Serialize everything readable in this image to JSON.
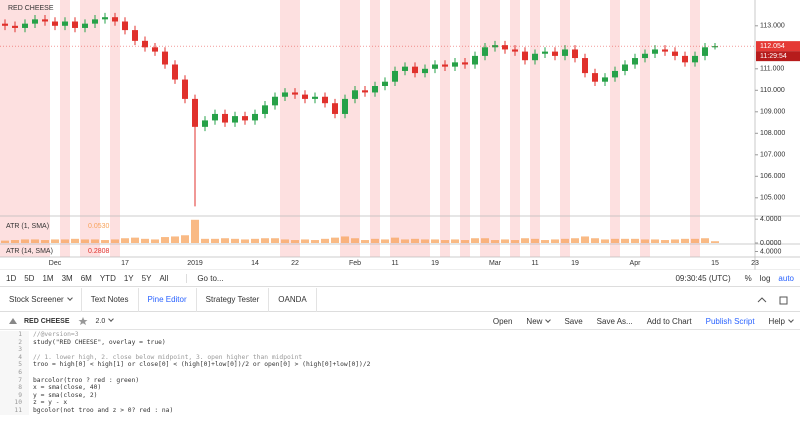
{
  "chart_data": [
    {
      "type": "candlestick",
      "title": "RED CHEESE",
      "categories": [
        null,
        null,
        null,
        null,
        null,
        "Dec",
        null,
        null,
        null,
        null,
        null,
        null,
        "17",
        null,
        null,
        null,
        null,
        null,
        null,
        "2019",
        null,
        null,
        null,
        null,
        null,
        "14",
        null,
        null,
        null,
        "22",
        null,
        null,
        null,
        null,
        null,
        "Feb",
        null,
        null,
        null,
        "11",
        null,
        null,
        null,
        "19",
        null,
        null,
        null,
        null,
        null,
        "Mar",
        null,
        null,
        null,
        "11",
        null,
        null,
        null,
        "19",
        null,
        null,
        null,
        null,
        null,
        "Apr",
        null,
        null,
        null,
        null,
        null,
        null,
        null,
        "15",
        null,
        null,
        null,
        "23"
      ],
      "series": [
        {
          "name": "RED CHEESE",
          "up_color": "#26a148",
          "down_color": "#e0312c",
          "values": [
            [
              113.1,
              113.3,
              112.8,
              113.0
            ],
            [
              113.0,
              113.2,
              112.7,
              112.9
            ],
            [
              112.9,
              113.3,
              112.7,
              113.1
            ],
            [
              113.1,
              113.5,
              112.9,
              113.3
            ],
            [
              113.3,
              113.5,
              113.0,
              113.2
            ],
            [
              113.2,
              113.4,
              112.8,
              113.0
            ],
            [
              113.0,
              113.4,
              112.8,
              113.2
            ],
            [
              113.2,
              113.4,
              112.7,
              112.9
            ],
            [
              112.9,
              113.3,
              112.7,
              113.1
            ],
            [
              113.1,
              113.5,
              112.9,
              113.3
            ],
            [
              113.3,
              113.6,
              113.1,
              113.4
            ],
            [
              113.4,
              113.6,
              113.0,
              113.2
            ],
            [
              113.2,
              113.4,
              112.6,
              112.8
            ],
            [
              112.8,
              113.0,
              112.1,
              112.3
            ],
            [
              112.3,
              112.5,
              111.8,
              112.0
            ],
            [
              112.0,
              112.2,
              111.6,
              111.8
            ],
            [
              111.8,
              112.0,
              111.0,
              111.2
            ],
            [
              111.2,
              111.4,
              110.3,
              110.5
            ],
            [
              110.5,
              110.7,
              109.4,
              109.6
            ],
            [
              109.6,
              109.8,
              104.6,
              108.3
            ],
            [
              108.3,
              108.8,
              108.1,
              108.6
            ],
            [
              108.6,
              109.1,
              108.4,
              108.9
            ],
            [
              108.9,
              109.1,
              108.3,
              108.5
            ],
            [
              108.5,
              109.0,
              108.3,
              108.8
            ],
            [
              108.8,
              109.0,
              108.4,
              108.6
            ],
            [
              108.6,
              109.1,
              108.4,
              108.9
            ],
            [
              108.9,
              109.5,
              108.7,
              109.3
            ],
            [
              109.3,
              109.9,
              109.1,
              109.7
            ],
            [
              109.7,
              110.1,
              109.5,
              109.9
            ],
            [
              109.9,
              110.1,
              109.6,
              109.8
            ],
            [
              109.8,
              110.0,
              109.4,
              109.6
            ],
            [
              109.6,
              109.9,
              109.4,
              109.7
            ],
            [
              109.7,
              109.9,
              109.2,
              109.4
            ],
            [
              109.4,
              109.6,
              108.7,
              108.9
            ],
            [
              108.9,
              109.8,
              108.7,
              109.6
            ],
            [
              109.6,
              110.2,
              109.4,
              110.0
            ],
            [
              110.0,
              110.2,
              109.7,
              109.9
            ],
            [
              109.9,
              110.4,
              109.7,
              110.2
            ],
            [
              110.2,
              110.6,
              110.0,
              110.4
            ],
            [
              110.4,
              111.1,
              110.2,
              110.9
            ],
            [
              110.9,
              111.3,
              110.7,
              111.1
            ],
            [
              111.1,
              111.3,
              110.6,
              110.8
            ],
            [
              110.8,
              111.2,
              110.6,
              111.0
            ],
            [
              111.0,
              111.4,
              110.8,
              111.2
            ],
            [
              111.2,
              111.4,
              110.9,
              111.1
            ],
            [
              111.1,
              111.5,
              110.9,
              111.3
            ],
            [
              111.3,
              111.5,
              111.0,
              111.2
            ],
            [
              111.2,
              111.8,
              111.0,
              111.6
            ],
            [
              111.6,
              112.2,
              111.4,
              112.0
            ],
            [
              112.0,
              112.3,
              111.8,
              112.1
            ],
            [
              112.1,
              112.3,
              111.7,
              111.9
            ],
            [
              111.9,
              112.1,
              111.6,
              111.8
            ],
            [
              111.8,
              112.0,
              111.2,
              111.4
            ],
            [
              111.4,
              111.9,
              111.2,
              111.7
            ],
            [
              111.7,
              112.0,
              111.5,
              111.8
            ],
            [
              111.8,
              112.0,
              111.4,
              111.6
            ],
            [
              111.6,
              112.1,
              111.4,
              111.9
            ],
            [
              111.9,
              112.1,
              111.3,
              111.5
            ],
            [
              111.5,
              111.7,
              110.6,
              110.8
            ],
            [
              110.8,
              111.0,
              110.2,
              110.4
            ],
            [
              110.4,
              110.8,
              110.2,
              110.6
            ],
            [
              110.6,
              111.1,
              110.4,
              110.9
            ],
            [
              110.9,
              111.4,
              110.7,
              111.2
            ],
            [
              111.2,
              111.7,
              111.0,
              111.5
            ],
            [
              111.5,
              111.9,
              111.3,
              111.7
            ],
            [
              111.7,
              112.1,
              111.5,
              111.9
            ],
            [
              111.9,
              112.1,
              111.6,
              111.8
            ],
            [
              111.8,
              112.0,
              111.4,
              111.6
            ],
            [
              111.6,
              111.8,
              111.1,
              111.3
            ],
            [
              111.3,
              111.8,
              111.1,
              111.6
            ],
            [
              111.6,
              112.2,
              111.4,
              112.0
            ],
            [
              112.0,
              112.2,
              111.9,
              112.054
            ],
            null,
            null,
            null
          ]
        }
      ],
      "highlighted_bars": [
        0,
        1,
        2,
        3,
        4,
        6,
        8,
        9,
        11,
        28,
        29,
        34,
        35,
        37,
        39,
        40,
        41,
        42,
        44,
        46,
        48,
        49,
        51,
        53,
        56,
        61,
        64,
        69
      ],
      "highlight_color": "#fde0e0",
      "last_price": {
        "value": 112.054,
        "label": "112.054"
      },
      "countdown": "11:29:54",
      "ylim": [
        104.2,
        114.2
      ],
      "yticks": [
        {
          "value": 105,
          "label": "105.000"
        },
        {
          "value": 106,
          "label": "106.000"
        },
        {
          "value": 107,
          "label": "107.000"
        },
        {
          "value": 108,
          "label": "108.000"
        },
        {
          "value": 109,
          "label": "109.000"
        },
        {
          "value": 110,
          "label": "110.000"
        },
        {
          "value": 111,
          "label": "111.000"
        },
        {
          "value": 113,
          "label": "113.000"
        }
      ],
      "grid": false
    },
    {
      "type": "bar",
      "title": "ATR (1, SMA)",
      "current": "0.0530",
      "color": "#f7a35c",
      "values": [
        0.4,
        0.5,
        0.6,
        0.6,
        0.5,
        0.6,
        0.6,
        0.7,
        0.6,
        0.6,
        0.5,
        0.6,
        0.8,
        0.9,
        0.7,
        0.6,
        1.0,
        1.1,
        1.3,
        3.9,
        0.7,
        0.7,
        0.8,
        0.7,
        0.6,
        0.7,
        0.8,
        0.8,
        0.6,
        0.5,
        0.6,
        0.5,
        0.7,
        0.9,
        1.1,
        0.8,
        0.5,
        0.7,
        0.6,
        0.9,
        0.6,
        0.7,
        0.6,
        0.6,
        0.5,
        0.6,
        0.5,
        0.8,
        0.8,
        0.5,
        0.6,
        0.5,
        0.8,
        0.7,
        0.5,
        0.6,
        0.7,
        0.8,
        1.1,
        0.8,
        0.6,
        0.7,
        0.7,
        0.7,
        0.6,
        0.6,
        0.5,
        0.6,
        0.7,
        0.7,
        0.8,
        0.3,
        null,
        null,
        null
      ],
      "ylim": [
        0,
        4.2
      ],
      "yticks": [
        {
          "value": 0,
          "label": "0.0000"
        },
        {
          "value": 4,
          "label": "4.0000"
        }
      ]
    },
    {
      "type": "indicator",
      "title": "ATR (14, SMA)",
      "current": "0.2808",
      "ylim": [
        0,
        8
      ],
      "yticks": [
        {
          "value": 4,
          "label": "4.0000"
        }
      ]
    }
  ],
  "ui": {
    "ranges": [
      "1D",
      "5D",
      "1M",
      "3M",
      "6M",
      "YTD",
      "1Y",
      "5Y",
      "All"
    ],
    "goto": "Go to...",
    "clock": "09:30:45 (UTC)",
    "percent": "%",
    "log": "log",
    "auto": "auto",
    "tabs": [
      "Stock Screener",
      "Text Notes",
      "Pine Editor",
      "Strategy Tester",
      "OANDA"
    ],
    "editor": {
      "script": "RED CHEESE",
      "version": "2.0",
      "actions": [
        "Open",
        "New",
        "Save",
        "Save As...",
        "Add to Chart",
        "Publish Script",
        "Help"
      ],
      "lines": [
        {
          "number": 1,
          "text": "//@version=3"
        },
        {
          "number": 2,
          "text": "study(\"RED CHEESE\", overlay = true)"
        },
        {
          "number": 3
        },
        {
          "number": 4,
          "text": "// 1. lower high, 2. close below midpoint, 3. open higher than midpoint"
        },
        {
          "number": 5,
          "text": "troo = high[0] < high[1] or close[0] < (high[0]+low[0])/2 or open[0] > (high[0]+low[0])/2"
        },
        {
          "number": 6
        },
        {
          "number": 7,
          "text": "barcolor(troo ? red : green)"
        },
        {
          "number": 8,
          "text": "x = sma(close, 40)"
        },
        {
          "number": 9,
          "text": "y = sma(close, 2)"
        },
        {
          "number": 10,
          "text": "z = y - x"
        },
        {
          "number": 11,
          "text": "bgcolor(not troo and z > 0? red : na)"
        }
      ]
    }
  }
}
